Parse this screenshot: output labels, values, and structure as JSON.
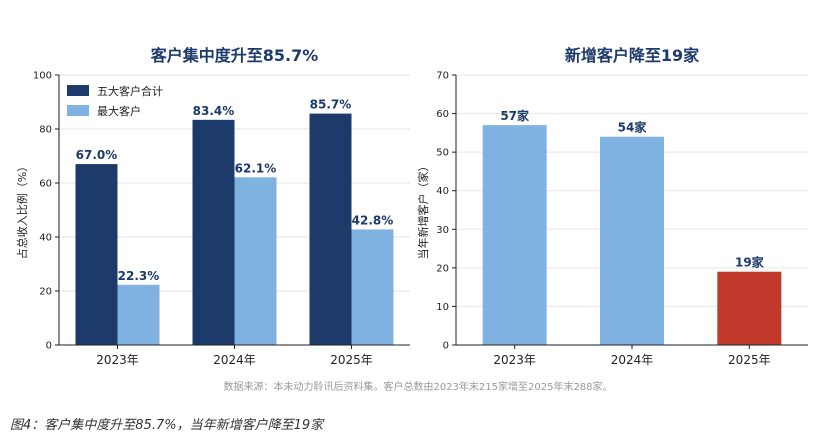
{
  "colors": {
    "dark_blue": "#1c3a6a",
    "light_blue": "#7fb2e0",
    "red": "#c0392b",
    "label_dark": "#1c3a6a",
    "label_red": "#1c3a6a",
    "axis": "#222222",
    "grid": "#e6e6e6",
    "source": "#9a9a9a"
  },
  "chart_data": [
    {
      "type": "bar",
      "title": "客户集中度升至85.7%",
      "ylabel": "占总收入比例（%）",
      "categories": [
        "2023年",
        "2024年",
        "2025年"
      ],
      "ylim": [
        0,
        100
      ],
      "yticks": [
        0,
        20,
        40,
        60,
        80,
        100
      ],
      "legend": "top-left",
      "grid": true,
      "series": [
        {
          "name": "五大客户合计",
          "values": [
            67.0,
            83.4,
            85.7
          ],
          "labels": [
            "67.0%",
            "83.4%",
            "85.7%"
          ]
        },
        {
          "name": "最大客户",
          "values": [
            22.3,
            62.1,
            42.8
          ],
          "labels": [
            "22.3%",
            "62.1%",
            "42.8%"
          ]
        }
      ]
    },
    {
      "type": "bar",
      "title": "新增客户降至19家",
      "ylabel": "当年新增客户（家）",
      "categories": [
        "2023年",
        "2024年",
        "2025年"
      ],
      "ylim": [
        0,
        70
      ],
      "yticks": [
        0,
        10,
        20,
        30,
        40,
        50,
        60,
        70
      ],
      "grid": true,
      "series": [
        {
          "values": [
            57,
            54,
            19
          ],
          "labels": [
            "57家",
            "54家",
            "19家"
          ]
        }
      ]
    }
  ],
  "source_note": "数据来源：本未动力聆讯后资料集。客户总数由2023年末215家增至2025年末288家。",
  "caption": "图4：客户集中度升至85.7%，当年新增客户降至19家"
}
